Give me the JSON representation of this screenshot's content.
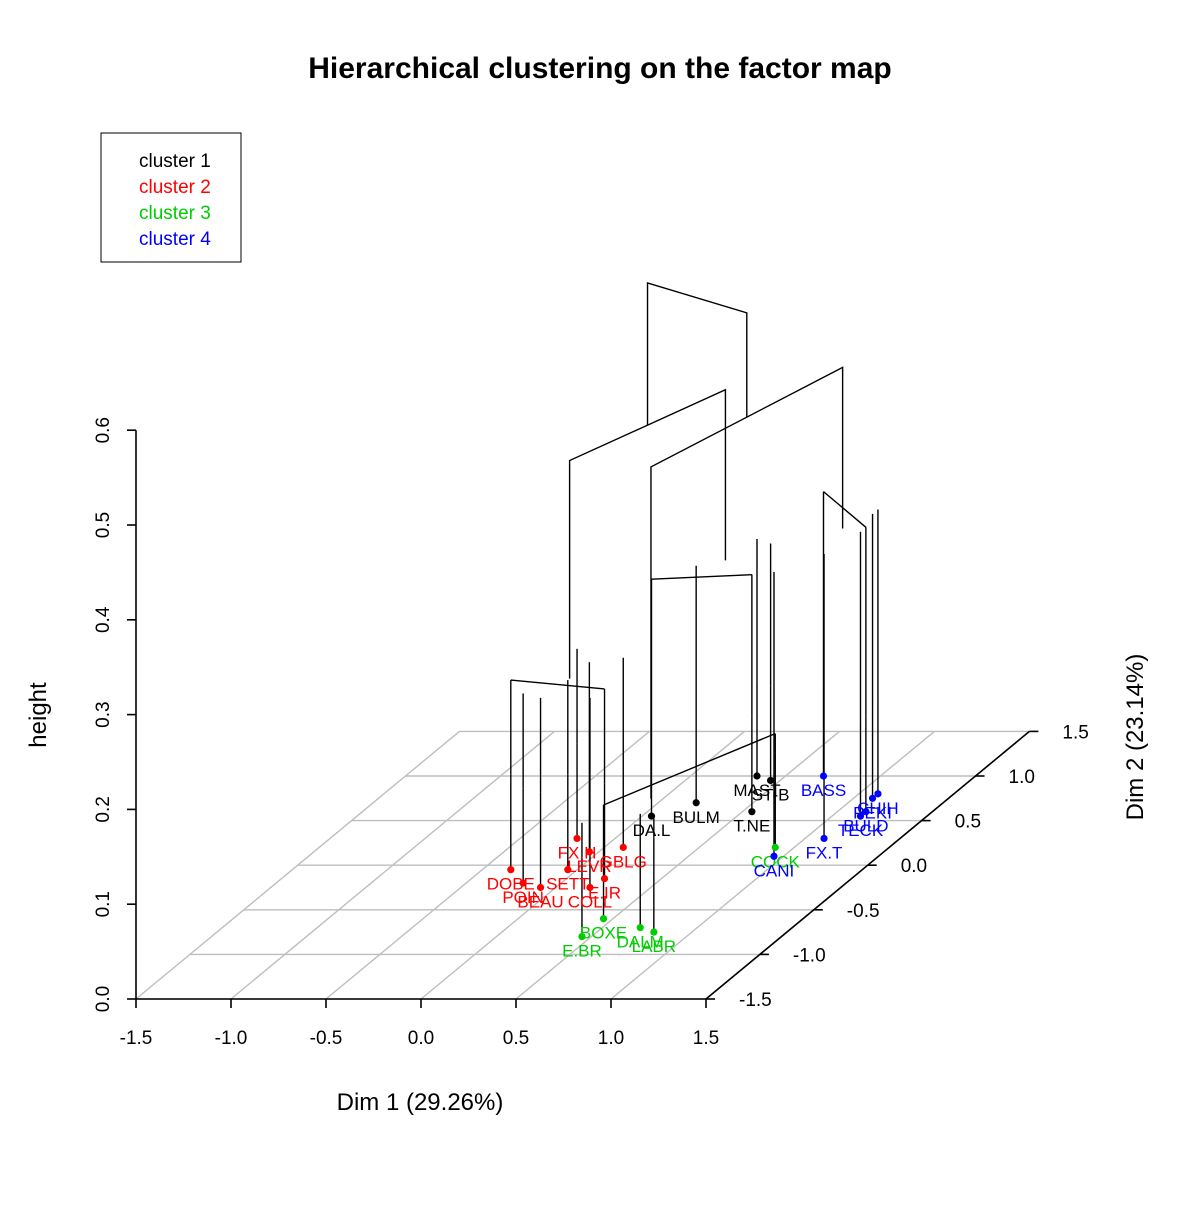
{
  "chart_data": {
    "type": "scatter",
    "title": "Hierarchical clustering on the factor map",
    "xlabel": "Dim 1 (29.26%)",
    "ylabel": "Dim 2 (23.14%)",
    "zlabel": "height",
    "xlim": [
      -1.5,
      1.5
    ],
    "ylim": [
      -1.5,
      1.5
    ],
    "zlim": [
      0,
      0.6
    ],
    "x_ticks": [
      "-1.5",
      "-1.0",
      "-0.5",
      "0.0",
      "0.5",
      "1.0",
      "1.5"
    ],
    "y_ticks": [
      "-1.5",
      "-1.0",
      "-0.5",
      "0.0",
      "0.5",
      "1.0",
      "1.5"
    ],
    "z_ticks": [
      "0.0",
      "0.1",
      "0.2",
      "0.3",
      "0.4",
      "0.5",
      "0.6"
    ],
    "grid": true,
    "legend": {
      "position": "top-left",
      "entries": [
        {
          "label": "cluster 1",
          "color": "#000000"
        },
        {
          "label": "cluster 2",
          "color": "#ff0000"
        },
        {
          "label": "cluster 3",
          "color": "#00cd00"
        },
        {
          "label": "cluster 4",
          "color": "#0000ff"
        }
      ]
    },
    "points": [
      {
        "label": "DA.L",
        "dim1": 0.05,
        "dim2": 0.55,
        "cluster": 1
      },
      {
        "label": "BULM",
        "dim1": 0.2,
        "dim2": 0.7,
        "cluster": 1
      },
      {
        "label": "MAST",
        "dim1": 0.35,
        "dim2": 1.0,
        "cluster": 1
      },
      {
        "label": "ST-B",
        "dim1": 0.45,
        "dim2": 0.95,
        "cluster": 1
      },
      {
        "label": "T.NE",
        "dim1": 0.55,
        "dim2": 0.6,
        "cluster": 1
      },
      {
        "label": "DOBE",
        "dim1": -0.35,
        "dim2": -0.05,
        "cluster": 2
      },
      {
        "label": "POIN",
        "dim1": -0.2,
        "dim2": -0.2,
        "cluster": 2
      },
      {
        "label": "BEAU",
        "dim1": -0.08,
        "dim2": -0.25,
        "cluster": 2
      },
      {
        "label": "SETT",
        "dim1": -0.05,
        "dim2": -0.05,
        "cluster": 2
      },
      {
        "label": "FX.H",
        "dim1": -0.2,
        "dim2": 0.3,
        "cluster": 2
      },
      {
        "label": "LEVR",
        "dim1": -0.05,
        "dim2": 0.15,
        "cluster": 2
      },
      {
        "label": "GBLG",
        "dim1": 0.1,
        "dim2": 0.2,
        "cluster": 2
      },
      {
        "label": "E.IR",
        "dim1": 0.2,
        "dim2": -0.15,
        "cluster": 2
      },
      {
        "label": "COLL",
        "dim1": 0.18,
        "dim2": -0.25,
        "cluster": 2
      },
      {
        "label": "BOXE",
        "dim1": 0.45,
        "dim2": -0.6,
        "cluster": 3
      },
      {
        "label": "E.BR",
        "dim1": 0.45,
        "dim2": -0.8,
        "cluster": 3
      },
      {
        "label": "DALM",
        "dim1": 0.7,
        "dim2": -0.7,
        "cluster": 3
      },
      {
        "label": "LABR",
        "dim1": 0.8,
        "dim2": -0.75,
        "cluster": 3
      },
      {
        "label": "COCK",
        "dim1": 0.9,
        "dim2": 0.2,
        "cluster": 3
      },
      {
        "label": "BASS",
        "dim1": 0.7,
        "dim2": 1.0,
        "cluster": 4
      },
      {
        "label": "FX.T",
        "dim1": 1.1,
        "dim2": 0.3,
        "cluster": 4
      },
      {
        "label": "CANI",
        "dim1": 0.95,
        "dim2": 0.1,
        "cluster": 4
      },
      {
        "label": "PEKI",
        "dim1": 1.1,
        "dim2": 0.75,
        "cluster": 4
      },
      {
        "label": "CHIH",
        "dim1": 1.1,
        "dim2": 0.8,
        "cluster": 4
      },
      {
        "label": "TECK",
        "dim1": 1.15,
        "dim2": 0.55,
        "cluster": 4
      },
      {
        "label": "BULD",
        "dim1": 1.15,
        "dim2": 0.6,
        "cluster": 4
      }
    ],
    "merges": [
      {
        "height": 0.58,
        "groups": [
          "clusters 1+2",
          "clusters 3+4"
        ]
      },
      {
        "height": 0.43,
        "groups": [
          "cluster 1",
          "cluster 2"
        ]
      },
      {
        "height": 0.47,
        "groups": [
          "cluster 3",
          "cluster 4"
        ]
      }
    ]
  }
}
